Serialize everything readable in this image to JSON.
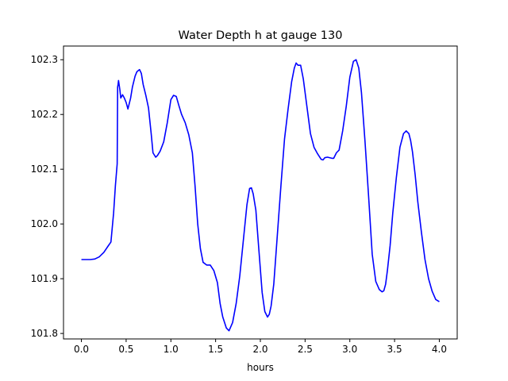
{
  "chart_data": {
    "type": "line",
    "title": "Water Depth h at gauge 130",
    "xlabel": "hours",
    "ylabel": "",
    "xlim": [
      -0.2,
      4.2
    ],
    "ylim": [
      101.79,
      102.325
    ],
    "x_ticks": [
      0.0,
      0.5,
      1.0,
      1.5,
      2.0,
      2.5,
      3.0,
      3.5,
      4.0
    ],
    "x_tick_labels": [
      "0.0",
      "0.5",
      "1.0",
      "1.5",
      "2.0",
      "2.5",
      "3.0",
      "3.5",
      "4.0"
    ],
    "y_ticks": [
      101.8,
      101.9,
      102.0,
      102.1,
      102.2,
      102.3
    ],
    "y_tick_labels": [
      "101.8",
      "101.9",
      "102.0",
      "102.1",
      "102.2",
      "102.3"
    ],
    "grid": false,
    "series": [
      {
        "color": "#0000ff",
        "x": [
          0.0,
          0.1,
          0.15,
          0.2,
          0.25,
          0.3,
          0.33,
          0.36,
          0.38,
          0.4,
          0.405,
          0.41,
          0.415,
          0.43,
          0.44,
          0.46,
          0.48,
          0.5,
          0.52,
          0.55,
          0.57,
          0.6,
          0.62,
          0.65,
          0.67,
          0.69,
          0.72,
          0.75,
          0.78,
          0.8,
          0.83,
          0.85,
          0.88,
          0.92,
          0.96,
          1.0,
          1.03,
          1.06,
          1.09,
          1.12,
          1.16,
          1.2,
          1.24,
          1.27,
          1.3,
          1.33,
          1.36,
          1.4,
          1.44,
          1.48,
          1.52,
          1.55,
          1.58,
          1.62,
          1.65,
          1.69,
          1.73,
          1.77,
          1.81,
          1.85,
          1.88,
          1.9,
          1.92,
          1.95,
          1.98,
          2.02,
          2.05,
          2.08,
          2.1,
          2.12,
          2.15,
          2.19,
          2.23,
          2.27,
          2.31,
          2.35,
          2.38,
          2.4,
          2.42,
          2.45,
          2.48,
          2.52,
          2.56,
          2.6,
          2.64,
          2.68,
          2.7,
          2.72,
          2.75,
          2.8,
          2.82,
          2.85,
          2.88,
          2.92,
          2.96,
          3.0,
          3.04,
          3.07,
          3.1,
          3.13,
          3.17,
          3.21,
          3.25,
          3.29,
          3.33,
          3.36,
          3.38,
          3.4,
          3.42,
          3.45,
          3.48,
          3.52,
          3.56,
          3.6,
          3.63,
          3.66,
          3.68,
          3.7,
          3.73,
          3.76,
          3.8,
          3.84,
          3.88,
          3.92,
          3.96,
          4.0
        ],
        "y": [
          101.935,
          101.935,
          101.936,
          101.94,
          101.948,
          101.96,
          101.967,
          102.02,
          102.07,
          102.11,
          102.25,
          102.255,
          102.262,
          102.245,
          102.23,
          102.236,
          102.23,
          102.222,
          102.21,
          102.23,
          102.25,
          102.27,
          102.278,
          102.282,
          102.275,
          102.255,
          102.235,
          102.212,
          102.165,
          102.13,
          102.122,
          102.125,
          102.133,
          102.15,
          102.185,
          102.227,
          102.235,
          102.233,
          102.216,
          102.2,
          102.185,
          102.163,
          102.13,
          102.07,
          102.0,
          101.955,
          101.93,
          101.925,
          101.925,
          101.915,
          101.893,
          101.855,
          101.83,
          101.81,
          101.805,
          101.82,
          101.855,
          101.905,
          101.97,
          102.035,
          102.065,
          102.066,
          102.055,
          102.025,
          101.96,
          101.875,
          101.84,
          101.83,
          101.835,
          101.85,
          101.89,
          101.98,
          102.07,
          102.155,
          102.21,
          102.26,
          102.285,
          102.294,
          102.29,
          102.29,
          102.265,
          102.215,
          102.165,
          102.14,
          102.128,
          102.118,
          102.117,
          102.121,
          102.122,
          102.12,
          102.12,
          102.13,
          102.135,
          102.17,
          102.215,
          102.268,
          102.297,
          102.3,
          102.285,
          102.24,
          102.15,
          102.05,
          101.945,
          101.895,
          101.88,
          101.876,
          101.878,
          101.89,
          101.915,
          101.96,
          102.02,
          102.085,
          102.14,
          102.165,
          102.17,
          102.165,
          102.152,
          102.132,
          102.09,
          102.04,
          101.985,
          101.935,
          101.9,
          101.877,
          101.862,
          101.858
        ]
      }
    ]
  }
}
